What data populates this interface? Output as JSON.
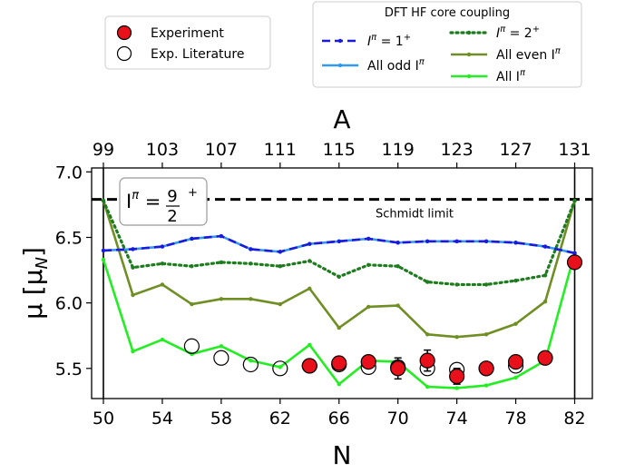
{
  "chart_data": {
    "type": "line",
    "x": [
      50,
      52,
      54,
      56,
      58,
      60,
      62,
      64,
      66,
      68,
      70,
      72,
      74,
      76,
      78,
      80,
      82
    ],
    "xlabel": "N",
    "xlim": [
      49.2,
      83.2
    ],
    "x_ticks": [
      50,
      54,
      58,
      62,
      66,
      70,
      74,
      78,
      82
    ],
    "top_axis": {
      "label": "A",
      "ticks": [
        99,
        103,
        107,
        111,
        115,
        119,
        123,
        127,
        131
      ],
      "tick_positions_N": [
        50,
        54,
        58,
        62,
        66,
        70,
        74,
        78,
        82
      ]
    },
    "ylabel_main": "μ",
    "ylabel_sub": "N",
    "ylim": [
      5.27,
      7.03
    ],
    "y_ticks": [
      "5.5",
      "6.0",
      "6.5",
      "7.0"
    ],
    "y_tick_values": [
      5.5,
      6.0,
      6.5,
      7.0
    ],
    "schmidt_limit": {
      "value": 6.79,
      "label": "Schmidt limit"
    },
    "spin_label": {
      "prefix": "I",
      "exp": "π",
      "eq": "=",
      "num": "9",
      "den": "2",
      "sign": "+"
    },
    "vertical_lines_N": [
      50,
      82
    ],
    "series": [
      {
        "name_main": "I",
        "name_exp": "π",
        "name_rest": " = 1",
        "name_sup": "+",
        "style": "dashed",
        "color": "#1a1adc",
        "values": [
          6.4,
          6.41,
          6.43,
          6.49,
          6.51,
          6.41,
          6.39,
          6.45,
          6.47,
          6.49,
          6.46,
          6.47,
          6.47,
          6.47,
          6.46,
          6.43,
          6.38
        ]
      },
      {
        "name_main": "All odd I",
        "name_exp": "π",
        "style": "solid",
        "color": "#3399ee",
        "values": [
          6.4,
          6.41,
          6.43,
          6.49,
          6.51,
          6.41,
          6.39,
          6.45,
          6.47,
          6.49,
          6.46,
          6.47,
          6.47,
          6.47,
          6.46,
          6.43,
          6.38
        ]
      },
      {
        "name_main": "I",
        "name_exp": "π",
        "name_rest": " =  2",
        "name_sup": "+",
        "style": "dotted",
        "color": "#1e7b1e",
        "values": [
          6.78,
          6.27,
          6.3,
          6.28,
          6.31,
          6.3,
          6.28,
          6.32,
          6.2,
          6.29,
          6.28,
          6.16,
          6.14,
          6.14,
          6.17,
          6.21,
          6.78
        ]
      },
      {
        "name_main": "All even I",
        "name_exp": "π",
        "style": "solid",
        "color": "#6f8e23",
        "values": [
          6.78,
          6.06,
          6.14,
          5.99,
          6.03,
          6.03,
          5.99,
          6.11,
          5.81,
          5.97,
          5.98,
          5.76,
          5.74,
          5.76,
          5.84,
          6.01,
          6.78
        ]
      },
      {
        "name_main": "All I",
        "name_exp": "π",
        "style": "solid",
        "color": "#22ee22",
        "values": [
          6.33,
          5.63,
          5.72,
          5.61,
          5.67,
          5.56,
          5.51,
          5.68,
          5.38,
          5.56,
          5.55,
          5.36,
          5.35,
          5.37,
          5.43,
          5.56,
          6.38
        ]
      }
    ],
    "experiment": {
      "name": "Experiment",
      "color": "#e8101a",
      "points": [
        {
          "x": 64,
          "y": 5.52,
          "err": 0.03
        },
        {
          "x": 66,
          "y": 5.54,
          "err": 0.03
        },
        {
          "x": 68,
          "y": 5.55,
          "err": 0.03
        },
        {
          "x": 70,
          "y": 5.5,
          "err": 0.08
        },
        {
          "x": 72,
          "y": 5.56,
          "err": 0.08
        },
        {
          "x": 74,
          "y": 5.44,
          "err": 0.06
        },
        {
          "x": 76,
          "y": 5.5,
          "err": 0.03
        },
        {
          "x": 78,
          "y": 5.55,
          "err": 0.03
        },
        {
          "x": 80,
          "y": 5.58,
          "err": 0.02
        },
        {
          "x": 82,
          "y": 6.31,
          "err": 0.02
        }
      ]
    },
    "literature": {
      "name": "Exp. Literature",
      "points": [
        {
          "x": 56,
          "y": 5.67
        },
        {
          "x": 58,
          "y": 5.58
        },
        {
          "x": 60,
          "y": 5.53
        },
        {
          "x": 62,
          "y": 5.5
        },
        {
          "x": 64,
          "y": 5.52
        },
        {
          "x": 66,
          "y": 5.53
        },
        {
          "x": 68,
          "y": 5.51
        },
        {
          "x": 70,
          "y": 5.51
        },
        {
          "x": 72,
          "y": 5.5
        },
        {
          "x": 74,
          "y": 5.49
        },
        {
          "x": 76,
          "y": 5.5
        },
        {
          "x": 78,
          "y": 5.52
        }
      ]
    },
    "legend_left_placement": "top-left",
    "legend_right_placement": "top-right",
    "legend_right_title": "DFT HF core coupling",
    "grid": false
  }
}
